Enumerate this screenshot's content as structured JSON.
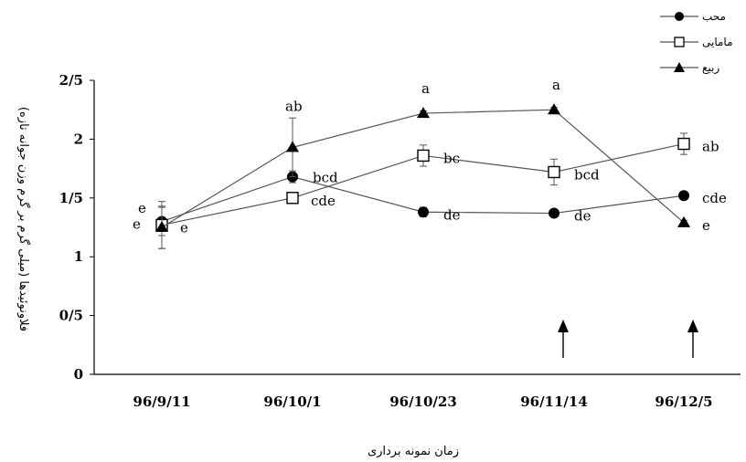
{
  "chart_data": {
    "type": "line",
    "categories": [
      "96/9/11",
      "96/10/1",
      "96/10/23",
      "96/11/14",
      "96/12/5"
    ],
    "ylabel": "فلاونوئیدها (میلی گرم بر گرم وزن جوانه تازه)",
    "xlabel": "زمان نمونه برداری",
    "ylim": [
      0,
      2.5
    ],
    "yticks": [
      0,
      0.5,
      1,
      1.5,
      2,
      2.5
    ],
    "ytick_labels": [
      "0",
      "0/5",
      "1",
      "1/5",
      "2",
      "2/5"
    ],
    "grid": false,
    "legend_position": "top-right",
    "series": [
      {
        "name": "محب",
        "marker": "filled-circle",
        "values": [
          1.3,
          1.68,
          1.38,
          1.37,
          1.52
        ],
        "errors": [
          0.12,
          0.05,
          0.04,
          0.02,
          0.02
        ],
        "labels": [
          "e",
          "bcd",
          "de",
          "de",
          "cde"
        ]
      },
      {
        "name": "مامایی",
        "marker": "open-square",
        "values": [
          1.27,
          1.5,
          1.86,
          1.72,
          1.96
        ],
        "errors": [
          0.2,
          0.04,
          0.09,
          0.11,
          0.09
        ],
        "labels": [
          "e",
          "cde",
          "bc",
          "bcd",
          "ab"
        ]
      },
      {
        "name": "ربیع",
        "marker": "filled-triangle",
        "values": [
          1.25,
          1.93,
          2.22,
          2.25,
          1.29
        ],
        "errors": [
          0.18,
          0.25,
          0.02,
          0.02,
          0.02
        ],
        "labels": [
          "e",
          "ab",
          "a",
          "a",
          "e"
        ]
      }
    ],
    "annotations": [
      {
        "type": "up-arrow",
        "category": "96/11/14"
      },
      {
        "type": "up-arrow",
        "category": "96/12/5"
      }
    ]
  }
}
